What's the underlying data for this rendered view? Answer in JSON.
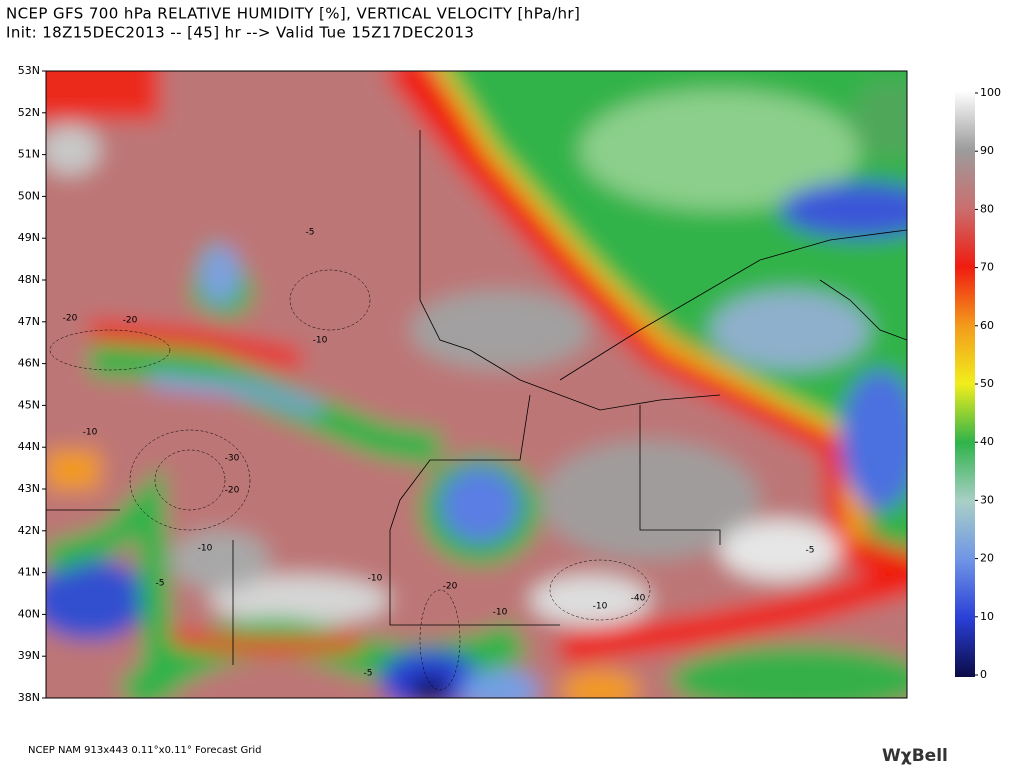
{
  "header": {
    "title": "NCEP GFS 700 hPa RELATIVE HUMIDITY [%], VERTICAL VELOCITY [hPa/hr]",
    "subtitle": "Init: 18Z15DEC2013 -- [45] hr --> Valid Tue 15Z17DEC2013"
  },
  "map": {
    "lat_lim": [
      38,
      53
    ],
    "lat_ticks": [
      {
        "value": 53,
        "label": "53N"
      },
      {
        "value": 52,
        "label": "52N"
      },
      {
        "value": 51,
        "label": "51N"
      },
      {
        "value": 50,
        "label": "50N"
      },
      {
        "value": 49,
        "label": "49N"
      },
      {
        "value": 48,
        "label": "48N"
      },
      {
        "value": 47,
        "label": "47N"
      },
      {
        "value": 46,
        "label": "46N"
      },
      {
        "value": 45,
        "label": "45N"
      },
      {
        "value": 44,
        "label": "44N"
      },
      {
        "value": 43,
        "label": "43N"
      },
      {
        "value": 42,
        "label": "42N"
      },
      {
        "value": 41,
        "label": "41N"
      },
      {
        "value": 40,
        "label": "40N"
      },
      {
        "value": 39,
        "label": "39N"
      },
      {
        "value": 38,
        "label": "38N"
      }
    ],
    "contour_labels": [
      "-5",
      "-10",
      "-20",
      "-20",
      "-10",
      "-30",
      "-20",
      "-10",
      "-5",
      "-10",
      "-20",
      "-10",
      "-40",
      "-10",
      "-5",
      "-5"
    ]
  },
  "colorbar": {
    "lim": [
      0,
      100
    ],
    "ticks": [
      0,
      10,
      20,
      30,
      40,
      50,
      60,
      70,
      80,
      90,
      100
    ],
    "colors": [
      "#0b0b45",
      "#2a3fd6",
      "#6f95e6",
      "#a9cfc6",
      "#2fb34a",
      "#f1ee1c",
      "#f39a1c",
      "#f01c10",
      "#c96f6f",
      "#9c9c9c",
      "#ffffff"
    ]
  },
  "footer": {
    "grid_note": "NCEP NAM 913x443 0.11°x0.11° Forecast Grid",
    "logo": "WχBell"
  }
}
